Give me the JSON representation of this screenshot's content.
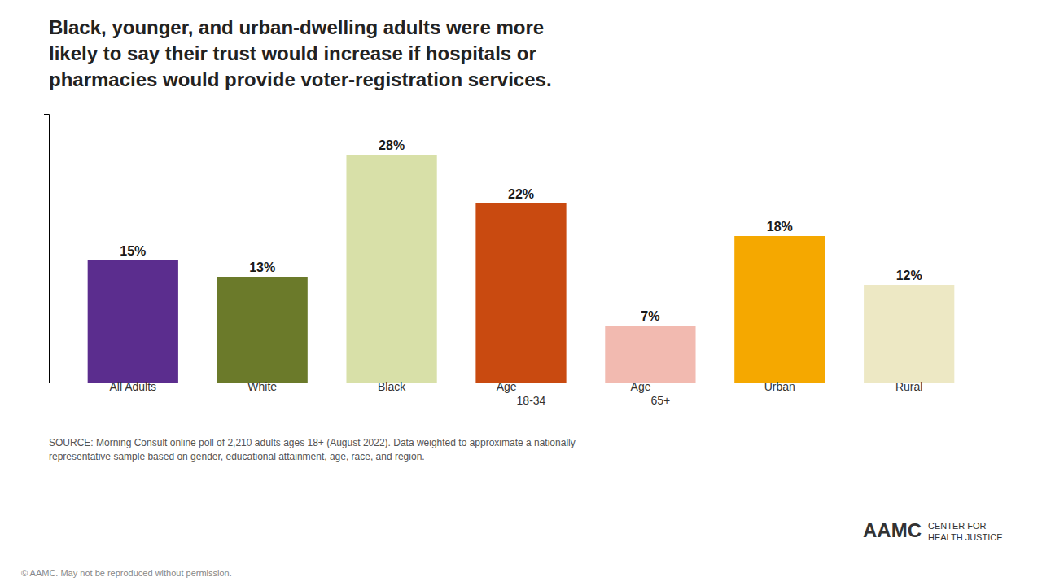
{
  "chart_data": {
    "type": "bar",
    "title": "Black, younger, and urban-dwelling adults were more\nlikely to say their trust would increase if hospitals or\npharmacies would provide voter-registration services.",
    "categories": [
      "All Adults",
      "White",
      "Black",
      "Age\n18-34",
      "Age\n65+",
      "Urban",
      "Rural"
    ],
    "values": [
      15,
      13,
      28,
      22,
      7,
      18,
      12
    ],
    "value_labels": [
      "15%",
      "13%",
      "28%",
      "22%",
      "7%",
      "18%",
      "12%"
    ],
    "colors": [
      "#5B2D8E",
      "#6B7A2A",
      "#D8E0A8",
      "#C94A10",
      "#F2BAB0",
      "#F5A800",
      "#EDE8C4"
    ],
    "ylim": [
      0,
      33
    ],
    "data_labels": true,
    "tick_labels": "x",
    "grid": false,
    "annotations": [
      "SOURCE: Morning Consult online poll of 2,210 adults ages 18+ (August 2022). Data weighted to approximate a nationally\nrepresentative sample based on gender, educational attainment, age, race, and region.",
      "© AAMC. May not be reproduced without permission.",
      "AAMC",
      "CENTER FOR\nHEALTH JUSTICE"
    ]
  }
}
